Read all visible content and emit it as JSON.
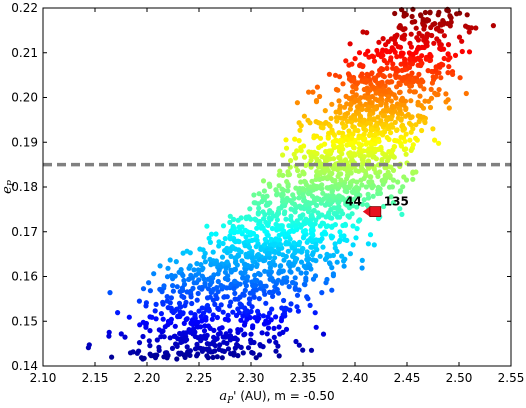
{
  "chart_data": {
    "type": "scatter",
    "xlabel_math": "a",
    "xlabel_sub": "P",
    "xlabel_rest": "' (AU), m = -0.50",
    "ylabel_math": "e",
    "ylabel_sub": "P",
    "xlim": [
      2.1,
      2.55
    ],
    "ylim": [
      0.14,
      0.22
    ],
    "xticks": [
      "2.10",
      "2.15",
      "2.20",
      "2.25",
      "2.30",
      "2.35",
      "2.40",
      "2.45",
      "2.50",
      "2.55"
    ],
    "yticks": [
      "0.14",
      "0.15",
      "0.16",
      "0.17",
      "0.18",
      "0.19",
      "0.20",
      "0.21",
      "0.22"
    ],
    "threshold_line": {
      "y": 0.185,
      "color": "#808080",
      "style": "dashed"
    },
    "colormap": "jet",
    "color_by": "y",
    "marker": {
      "label_left": "44",
      "label_right": "135",
      "x": 2.42,
      "y": 0.1745,
      "color": "#e8101f"
    },
    "grid": false,
    "legend": "none",
    "point_count": 2200,
    "cloud": {
      "density_profile": [
        {
          "y": 0.142,
          "x_range": [
            2.12,
            2.38
          ],
          "density": 0.6
        },
        {
          "y": 0.15,
          "x_range": [
            2.13,
            2.4
          ],
          "density": 0.8
        },
        {
          "y": 0.16,
          "x_range": [
            2.17,
            2.42
          ],
          "density": 1.0
        },
        {
          "y": 0.17,
          "x_range": [
            2.23,
            2.45
          ],
          "density": 1.0
        },
        {
          "y": 0.18,
          "x_range": [
            2.28,
            2.47
          ],
          "density": 1.0
        },
        {
          "y": 0.19,
          "x_range": [
            2.32,
            2.49
          ],
          "density": 1.0
        },
        {
          "y": 0.2,
          "x_range": [
            2.34,
            2.51
          ],
          "density": 0.9
        },
        {
          "y": 0.21,
          "x_range": [
            2.37,
            2.53
          ],
          "density": 0.6
        },
        {
          "y": 0.218,
          "x_range": [
            2.4,
            2.55
          ],
          "density": 0.3
        }
      ]
    }
  }
}
